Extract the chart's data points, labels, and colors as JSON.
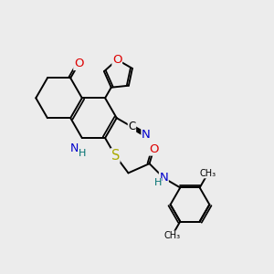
{
  "bg_color": "#ececec",
  "bond_color": "#000000",
  "bond_width": 1.4,
  "atom_colors": {
    "C": "#000000",
    "N": "#0000cc",
    "O": "#dd0000",
    "S": "#aaaa00",
    "H": "#007070"
  },
  "font_size": 8.5
}
